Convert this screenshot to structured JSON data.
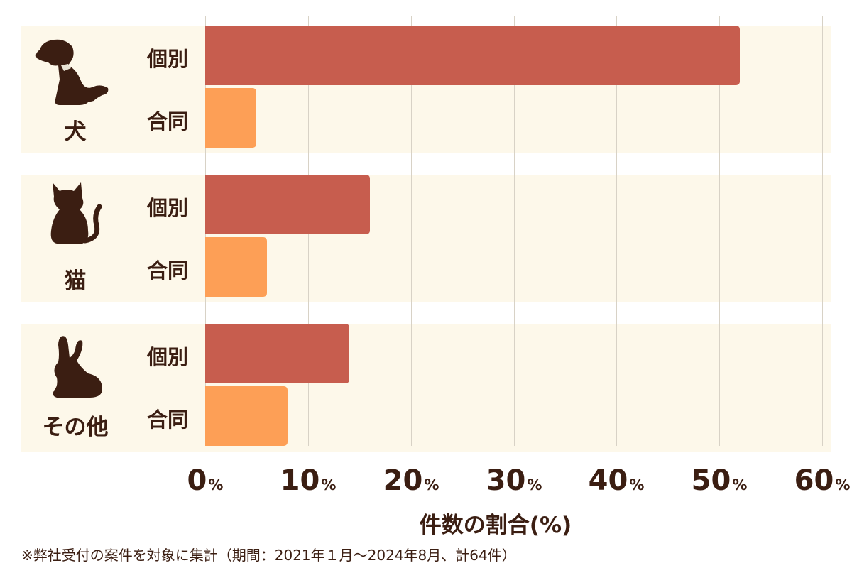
{
  "chart_data": {
    "type": "bar",
    "orientation": "horizontal",
    "groups": [
      {
        "name": "犬",
        "icon": "dog-icon",
        "bars": [
          {
            "label": "個別",
            "value": 52.0,
            "color": "#c75d4e"
          },
          {
            "label": "合同",
            "value": 5.0,
            "color": "#fd9f56"
          }
        ]
      },
      {
        "name": "猫",
        "icon": "cat-icon",
        "bars": [
          {
            "label": "個別",
            "value": 16.0,
            "color": "#c75d4e"
          },
          {
            "label": "合同",
            "value": 6.0,
            "color": "#fd9f56"
          }
        ]
      },
      {
        "name": "その他",
        "icon": "rabbit-icon",
        "bars": [
          {
            "label": "個別",
            "value": 14.0,
            "color": "#c75d4e"
          },
          {
            "label": "合同",
            "value": 8.0,
            "color": "#fd9f56"
          }
        ]
      }
    ],
    "xlim": [
      0,
      60
    ],
    "xticks": [
      "0",
      "10",
      "20",
      "30",
      "40",
      "50",
      "60"
    ],
    "tick_unit": "%",
    "xlabel": "件数の割合(%)",
    "grid": true
  },
  "footnote": "※弊社受付の案件を対象に集計（期間：2021年１月～2024年8月、計64件）"
}
